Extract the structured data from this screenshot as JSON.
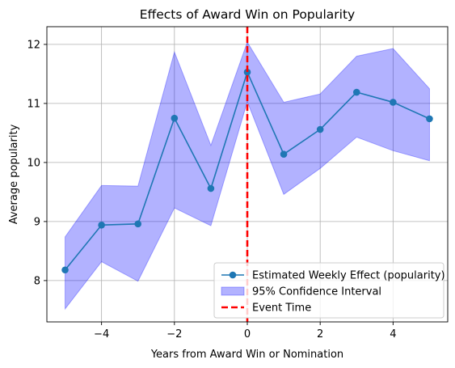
{
  "chart_data": {
    "type": "line",
    "title": "Effects of Award Win on Popularity",
    "xlabel": "Years from Award Win or Nomination",
    "ylabel": "Average popularity",
    "xlim": [
      -5.5,
      5.5
    ],
    "ylim": [
      7.3,
      12.3
    ],
    "xticks": [
      -4,
      -2,
      0,
      2,
      4
    ],
    "xtick_labels": [
      "−4",
      "−2",
      "0",
      "2",
      "4"
    ],
    "yticks": [
      8,
      9,
      10,
      11,
      12
    ],
    "ytick_labels": [
      "8",
      "9",
      "10",
      "11",
      "12"
    ],
    "grid": true,
    "legend_position": "lower-right",
    "x": [
      -5,
      -4,
      -3,
      -2,
      -1,
      0,
      1,
      2,
      3,
      4,
      5
    ],
    "series": [
      {
        "name": "Estimated Weekly Effect (popularity)",
        "kind": "line-marker",
        "color": "#1f77b4",
        "values": [
          8.18,
          8.94,
          8.96,
          10.75,
          9.56,
          11.53,
          10.14,
          10.56,
          11.19,
          11.02,
          10.74
        ]
      },
      {
        "name": "95% Confidence Interval",
        "kind": "band",
        "color": "#0000ff",
        "lower": [
          7.52,
          8.32,
          7.99,
          9.23,
          8.93,
          11.03,
          9.46,
          9.9,
          10.43,
          10.2,
          10.03
        ],
        "upper": [
          8.74,
          9.61,
          9.6,
          11.87,
          10.29,
          12.04,
          11.02,
          11.16,
          11.8,
          11.93,
          11.25
        ]
      },
      {
        "name": "Event Time",
        "kind": "vline",
        "color": "#ff0000",
        "x_value": 0
      }
    ]
  }
}
